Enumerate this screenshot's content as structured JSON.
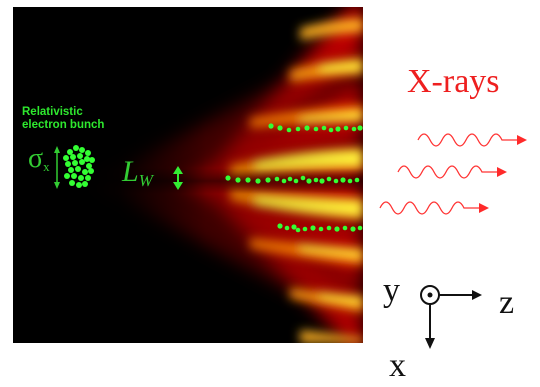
{
  "labels": {
    "bunch_line1": "Relativistic",
    "bunch_line2": "electron bunch",
    "sigma": "σ",
    "sigma_sub": "x",
    "lw": "L",
    "lw_sub": "W",
    "xrays": "X-rays",
    "axis_y": "y",
    "axis_z": "z",
    "axis_x": "x"
  },
  "colors": {
    "field_bright": "#fff23a",
    "field_red": "#e00000",
    "background_dark": "#000000",
    "electrons": "#33ff33",
    "xray": "#ff2a2a",
    "axes": "#111111"
  },
  "icons": {
    "axis_origin": "circle-dot-icon",
    "arrows": "arrow-icon"
  }
}
